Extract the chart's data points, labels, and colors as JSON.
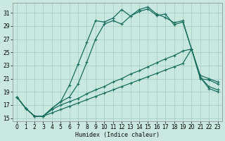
{
  "xlabel": "Humidex (Indice chaleur)",
  "bg_color": "#c8e8e0",
  "grid_color": "#a8d0c8",
  "line_color": "#1a6e5e",
  "xlim": [
    -0.5,
    23.5
  ],
  "ylim": [
    14.5,
    32.5
  ],
  "xticks": [
    0,
    1,
    2,
    3,
    4,
    5,
    6,
    7,
    8,
    9,
    10,
    11,
    12,
    13,
    14,
    15,
    16,
    17,
    18,
    19,
    20,
    21,
    22,
    23
  ],
  "yticks": [
    15,
    17,
    19,
    21,
    23,
    25,
    27,
    29,
    31
  ],
  "curve1_x": [
    0,
    1,
    2,
    3,
    4,
    5,
    6,
    7,
    8,
    9,
    10,
    11,
    12,
    13,
    14,
    15,
    16,
    17,
    18,
    19,
    20,
    21,
    22,
    23
  ],
  "curve1_y": [
    18.2,
    16.5,
    15.3,
    15.3,
    16.5,
    17.5,
    20.0,
    23.2,
    26.5,
    29.8,
    29.6,
    30.2,
    31.5,
    30.5,
    31.2,
    31.6,
    30.6,
    30.8,
    29.2,
    29.6,
    25.5,
    21.0,
    20.8,
    20.2
  ],
  "curve2_x": [
    0,
    1,
    2,
    3,
    4,
    5,
    6,
    7,
    8,
    9,
    10,
    11,
    12,
    13,
    14,
    15,
    16,
    17,
    18,
    19,
    20,
    21,
    22,
    23
  ],
  "curve2_y": [
    18.2,
    16.5,
    15.3,
    15.3,
    16.5,
    17.5,
    18.2,
    20.2,
    23.5,
    27.0,
    29.3,
    29.8,
    29.3,
    30.5,
    31.5,
    31.9,
    30.8,
    30.3,
    29.5,
    29.8,
    25.5,
    21.5,
    21.0,
    20.5
  ],
  "curve3_x": [
    0,
    1,
    2,
    3,
    4,
    5,
    6,
    7,
    8,
    9,
    10,
    11,
    12,
    13,
    14,
    15,
    16,
    17,
    18,
    19,
    20,
    21,
    22,
    23
  ],
  "curve3_y": [
    18.2,
    16.5,
    15.3,
    15.3,
    16.3,
    17.0,
    17.5,
    18.0,
    18.7,
    19.3,
    19.8,
    20.5,
    21.0,
    21.7,
    22.2,
    22.8,
    23.4,
    24.0,
    24.5,
    25.2,
    25.5,
    21.2,
    19.8,
    19.3
  ],
  "curve4_x": [
    0,
    1,
    2,
    3,
    4,
    5,
    6,
    7,
    8,
    9,
    10,
    11,
    12,
    13,
    14,
    15,
    16,
    17,
    18,
    19,
    20,
    21,
    22,
    23
  ],
  "curve4_y": [
    18.2,
    16.5,
    15.3,
    15.3,
    15.8,
    16.3,
    16.8,
    17.3,
    17.8,
    18.3,
    18.8,
    19.3,
    19.8,
    20.3,
    20.8,
    21.3,
    21.8,
    22.3,
    22.8,
    23.3,
    25.5,
    21.2,
    19.5,
    19.0
  ]
}
